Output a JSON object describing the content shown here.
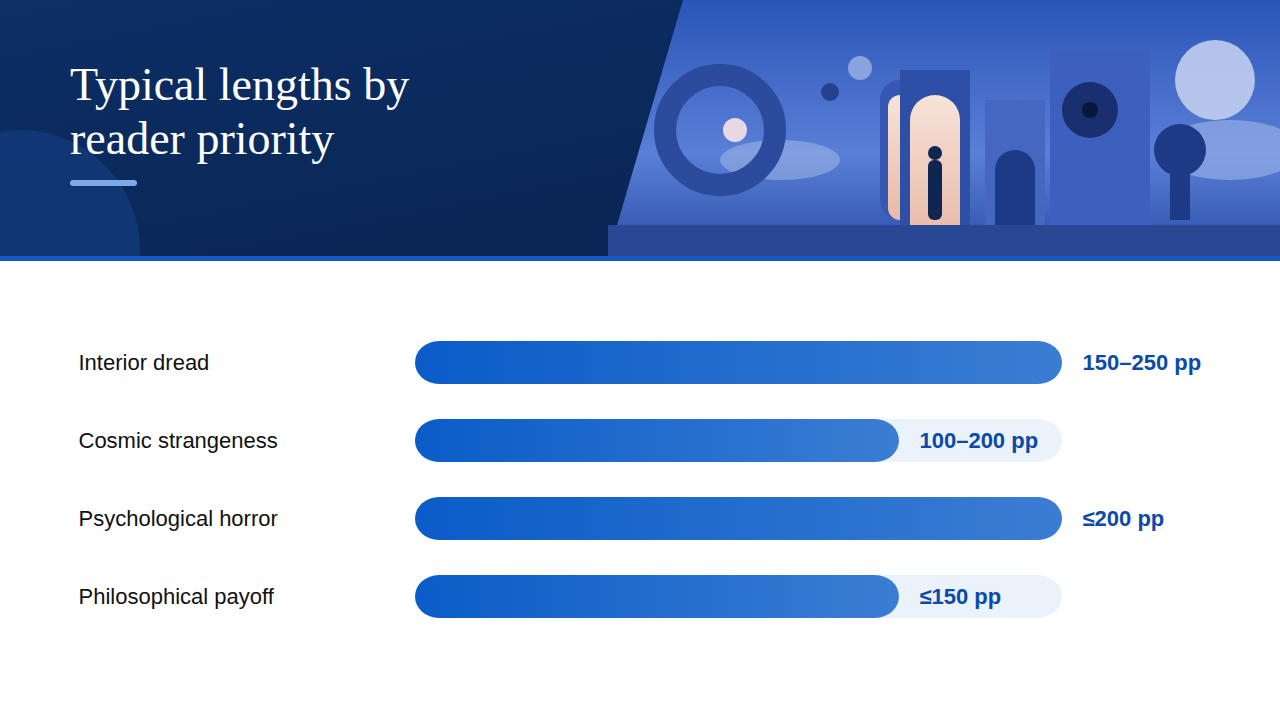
{
  "chart_data": {
    "type": "bar",
    "orientation": "horizontal",
    "title": "Typical lengths by reader priority",
    "categories": [
      "Interior dread",
      "Cosmic strangeness",
      "Psychological horror",
      "Philosophical payoff"
    ],
    "values": [
      250,
      187,
      250,
      187
    ],
    "annotations": [
      "150–250 pp",
      "100–200 pp",
      "≤200 pp",
      "≤150 pp"
    ],
    "xlim": [
      0,
      250
    ],
    "tick_labels": false,
    "grid": false,
    "color": "#0a5cc8"
  }
}
